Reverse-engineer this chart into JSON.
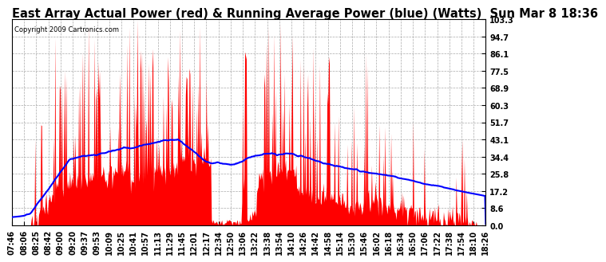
{
  "title": "East Array Actual Power (red) & Running Average Power (blue) (Watts)  Sun Mar 8 18:36",
  "copyright": "Copyright 2009 Cartronics.com",
  "yticks": [
    0.0,
    8.6,
    17.2,
    25.8,
    34.4,
    43.1,
    51.7,
    60.3,
    68.9,
    77.5,
    86.1,
    94.7,
    103.3
  ],
  "ylim": [
    0.0,
    103.3
  ],
  "xtick_labels": [
    "07:46",
    "08:06",
    "08:25",
    "08:42",
    "09:00",
    "09:20",
    "09:37",
    "09:53",
    "10:09",
    "10:25",
    "10:41",
    "10:57",
    "11:13",
    "11:29",
    "11:45",
    "12:01",
    "12:17",
    "12:34",
    "12:50",
    "13:06",
    "13:22",
    "13:38",
    "13:54",
    "14:10",
    "14:26",
    "14:42",
    "14:58",
    "15:14",
    "15:30",
    "15:46",
    "16:02",
    "16:18",
    "16:34",
    "16:50",
    "17:06",
    "17:22",
    "17:38",
    "17:54",
    "18:10",
    "18:26"
  ],
  "background_color": "#ffffff",
  "plot_bg_color": "#ffffff",
  "grid_color": "#aaaaaa",
  "red_color": "#ff0000",
  "blue_color": "#0000ff",
  "title_fontsize": 10.5,
  "tick_fontsize": 7
}
